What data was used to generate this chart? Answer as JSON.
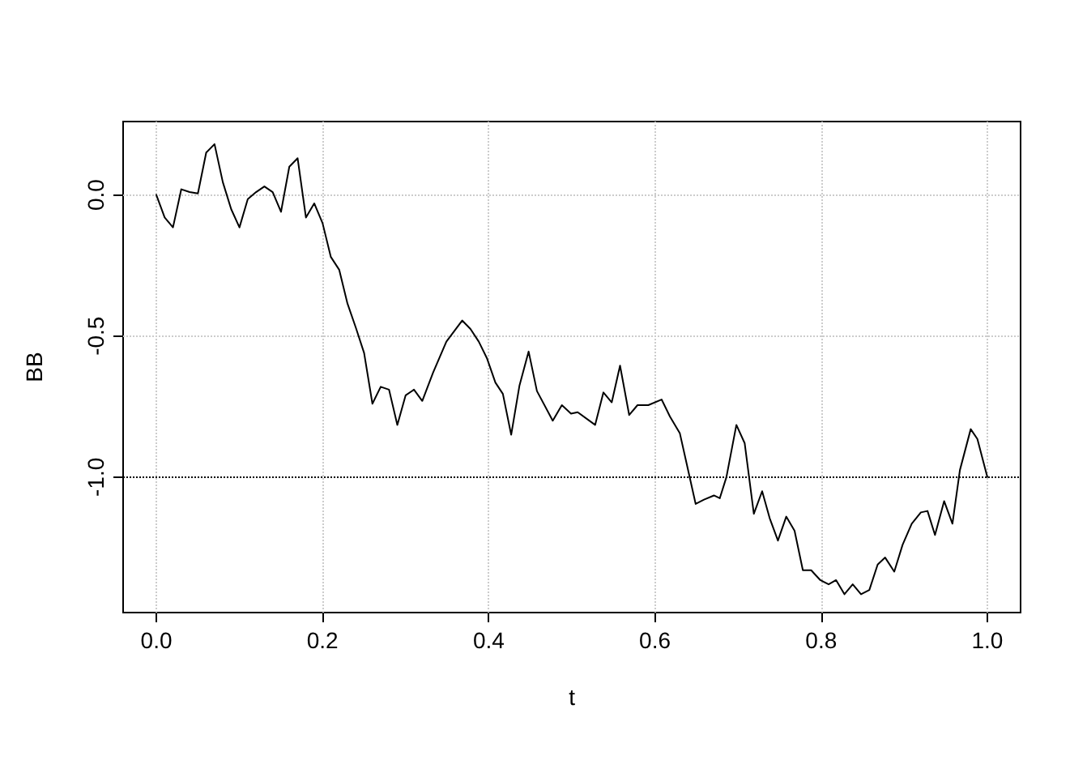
{
  "chart_data": {
    "type": "line",
    "xlabel": "t",
    "ylabel": "BB",
    "series": [
      {
        "color": "#000000",
        "x": [
          0,
          0.01,
          0.02,
          0.03,
          0.04,
          0.05,
          0.06,
          0.07,
          0.08,
          0.09,
          0.1,
          0.11,
          0.12,
          0.13,
          0.14,
          0.15,
          0.16,
          0.17,
          0.18,
          0.19,
          0.2,
          0.21,
          0.22,
          0.23,
          0.24,
          0.25,
          0.26,
          0.27,
          0.28,
          0.29,
          0.3,
          0.31,
          0.32,
          0.333,
          0.349,
          0.368,
          0.378,
          0.388,
          0.398,
          0.408,
          0.417,
          0.427,
          0.437,
          0.448,
          0.458,
          0.477,
          0.488,
          0.499,
          0.507,
          0.528,
          0.538,
          0.548,
          0.558,
          0.569,
          0.579,
          0.592,
          0.608,
          0.618,
          0.63,
          0.638,
          0.649,
          0.659,
          0.671,
          0.678,
          0.686,
          0.698,
          0.708,
          0.719,
          0.729,
          0.738,
          0.748,
          0.758,
          0.768,
          0.778,
          0.788,
          0.799,
          0.809,
          0.818,
          0.828,
          0.838,
          0.848,
          0.858,
          0.868,
          0.877,
          0.888,
          0.898,
          0.909,
          0.92,
          0.928,
          0.937,
          0.948,
          0.958,
          0.967,
          0.98,
          0.988,
          1.0
        ],
        "values": [
          0,
          -0.08,
          -0.115,
          0.02,
          0.01,
          0.005,
          0.15,
          0.18,
          0.045,
          -0.05,
          -0.115,
          -0.015,
          0.01,
          0.03,
          0.01,
          -0.06,
          0.1,
          0.13,
          -0.08,
          -0.03,
          -0.1,
          -0.22,
          -0.265,
          -0.385,
          -0.47,
          -0.56,
          -0.74,
          -0.68,
          -0.69,
          -0.815,
          -0.71,
          -0.69,
          -0.73,
          -0.63,
          -0.52,
          -0.445,
          -0.475,
          -0.52,
          -0.58,
          -0.665,
          -0.705,
          -0.85,
          -0.675,
          -0.555,
          -0.695,
          -0.8,
          -0.745,
          -0.775,
          -0.77,
          -0.815,
          -0.7,
          -0.735,
          -0.605,
          -0.78,
          -0.745,
          -0.745,
          -0.725,
          -0.785,
          -0.845,
          -0.95,
          -1.095,
          -1.08,
          -1.065,
          -1.075,
          -1.0,
          -0.815,
          -0.88,
          -1.13,
          -1.05,
          -1.145,
          -1.225,
          -1.14,
          -1.19,
          -1.33,
          -1.33,
          -1.365,
          -1.38,
          -1.365,
          -1.415,
          -1.38,
          -1.415,
          -1.4,
          -1.31,
          -1.285,
          -1.335,
          -1.24,
          -1.165,
          -1.125,
          -1.12,
          -1.205,
          -1.085,
          -1.165,
          -0.975,
          -0.83,
          -0.865,
          -1.0
        ]
      }
    ],
    "xlim": [
      -0.04,
      1.04
    ],
    "xticks": [
      {
        "value": 0,
        "label": "0.0"
      },
      {
        "value": 0.2,
        "label": "0.2"
      },
      {
        "value": 0.4,
        "label": "0.4"
      },
      {
        "value": 0.6,
        "label": "0.6"
      },
      {
        "value": 0.8,
        "label": "0.8"
      },
      {
        "value": 1,
        "label": "1.0"
      }
    ],
    "ylim": [
      -1.48,
      0.26
    ],
    "yticks": [
      {
        "value": -1,
        "label": "-1.0"
      },
      {
        "value": -0.5,
        "label": "-0.5"
      },
      {
        "value": 0,
        "label": "0.0"
      }
    ],
    "grid": true,
    "marker": "none",
    "line_style": "solid",
    "ref_lines": [
      {
        "axis": "y",
        "value": -1,
        "color": "#000000",
        "line_style": "dotted"
      }
    ]
  }
}
